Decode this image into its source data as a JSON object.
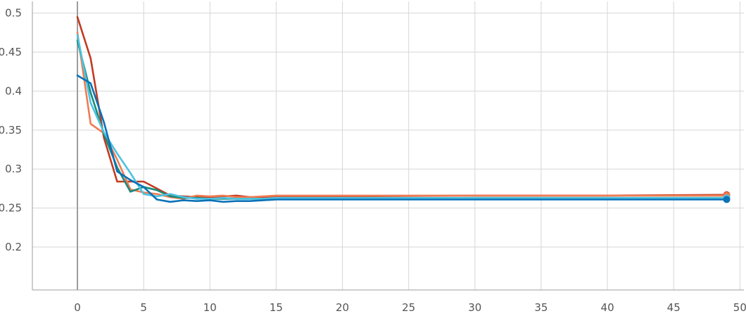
{
  "chart_data": {
    "type": "line",
    "title": "",
    "xlabel": "",
    "ylabel": "",
    "xlim": [
      -3.4,
      50.3
    ],
    "ylim": [
      0.145,
      0.515
    ],
    "grid": true,
    "x_ticks": [
      0,
      5,
      10,
      15,
      20,
      25,
      30,
      35,
      40,
      45,
      50
    ],
    "x_tick_labels": [
      "0",
      "5",
      "10",
      "15",
      "20",
      "25",
      "30",
      "35",
      "40",
      "45",
      "50"
    ],
    "y_ticks": [
      0.2,
      0.25,
      0.3,
      0.35,
      0.4,
      0.45,
      0.5
    ],
    "y_tick_labels": [
      "0.2",
      "0.25",
      "0.3",
      "0.35",
      "0.4",
      "0.45",
      "0.5"
    ],
    "series": [
      {
        "color": "#c23b22",
        "x": [
          0,
          1,
          2,
          3,
          4,
          5,
          6,
          7,
          8,
          9,
          10,
          11,
          12,
          13,
          14,
          15,
          20,
          30,
          40,
          49
        ],
        "values": [
          0.495,
          0.442,
          0.34,
          0.284,
          0.284,
          0.284,
          0.275,
          0.266,
          0.265,
          0.264,
          0.264,
          0.265,
          0.266,
          0.264,
          0.263,
          0.264,
          0.265,
          0.266,
          0.266,
          0.267
        ],
        "end_marker": true
      },
      {
        "color": "#f07c54",
        "x": [
          0,
          1,
          2,
          3,
          4,
          5,
          6,
          7,
          8,
          9,
          10,
          11,
          12,
          13,
          14,
          15,
          20,
          30,
          40,
          49
        ],
        "values": [
          0.475,
          0.358,
          0.346,
          0.312,
          0.274,
          0.27,
          0.268,
          0.264,
          0.262,
          0.266,
          0.265,
          0.266,
          0.264,
          0.264,
          0.265,
          0.266,
          0.266,
          0.266,
          0.266,
          0.266
        ],
        "end_marker": true
      },
      {
        "color": "#1a8a7a",
        "x": [
          0,
          1,
          2,
          3,
          4,
          5,
          6,
          7,
          8,
          9,
          10,
          11,
          12,
          13,
          14,
          15,
          20,
          30,
          40,
          49
        ],
        "values": [
          0.465,
          0.398,
          0.345,
          0.302,
          0.271,
          0.277,
          0.273,
          0.265,
          0.263,
          0.263,
          0.262,
          0.262,
          0.262,
          0.262,
          0.262,
          0.262,
          0.262,
          0.263,
          0.263,
          0.263
        ],
        "end_marker": true
      },
      {
        "color": "#4cc3e0",
        "x": [
          0,
          1,
          2,
          3,
          4,
          5,
          6,
          7,
          8,
          9,
          10,
          11,
          12,
          13,
          14,
          15,
          20,
          30,
          40,
          49
        ],
        "values": [
          0.472,
          0.385,
          0.347,
          0.32,
          0.295,
          0.268,
          0.265,
          0.268,
          0.264,
          0.262,
          0.262,
          0.263,
          0.262,
          0.262,
          0.262,
          0.263,
          0.263,
          0.263,
          0.263,
          0.263
        ],
        "end_marker": true
      },
      {
        "color": "#0a72b8",
        "x": [
          0,
          1,
          2,
          3,
          4,
          5,
          6,
          7,
          8,
          9,
          10,
          11,
          12,
          13,
          14,
          15,
          20,
          30,
          40,
          49
        ],
        "values": [
          0.42,
          0.41,
          0.36,
          0.297,
          0.286,
          0.277,
          0.261,
          0.258,
          0.26,
          0.259,
          0.26,
          0.258,
          0.259,
          0.259,
          0.26,
          0.261,
          0.261,
          0.261,
          0.261,
          0.261
        ],
        "end_marker": true
      }
    ]
  }
}
